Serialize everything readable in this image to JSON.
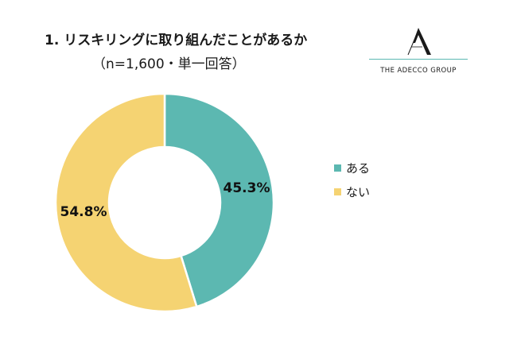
{
  "header": {
    "title": "1. リスキリングに取り組んだことがあるか",
    "subtitle": "（n=1,600・単一回答）"
  },
  "logo": {
    "text": "THE ADECCO GROUP",
    "accent": "#5bb8b2"
  },
  "chart_data": {
    "type": "pie",
    "donut": true,
    "categories": [
      "ある",
      "ない"
    ],
    "values": [
      45.3,
      54.8
    ],
    "labels": [
      "45.3%",
      "54.8%"
    ],
    "colors": [
      "#5cb8b1",
      "#f5d372"
    ],
    "legend": "right",
    "title": "1. リスキリングに取り組んだことがあるか",
    "subtitle": "（n=1,600・単一回答）"
  }
}
